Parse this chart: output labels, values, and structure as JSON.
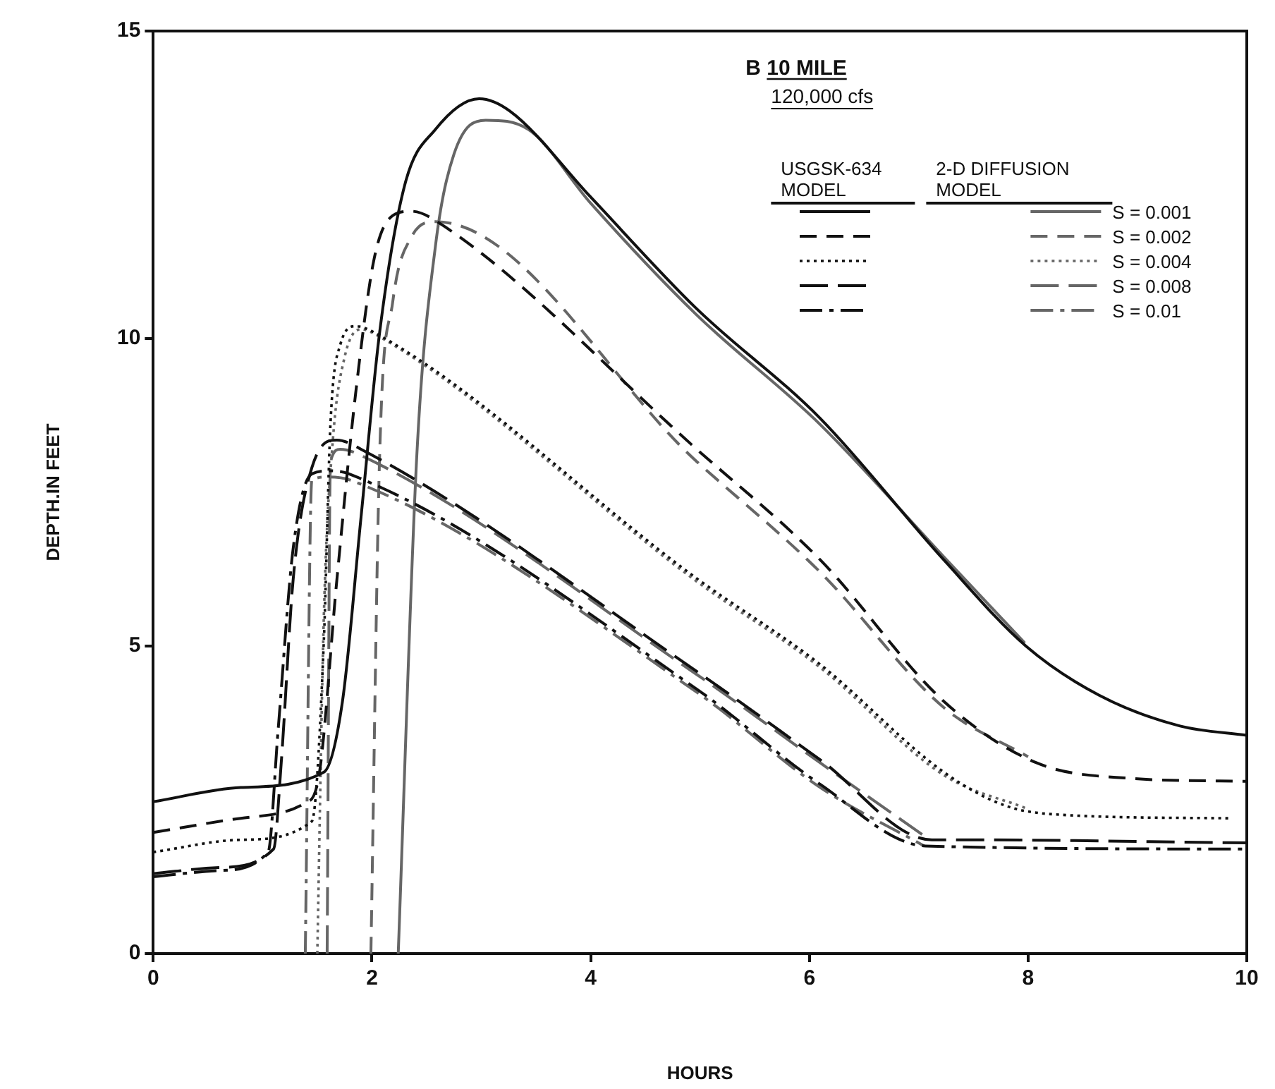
{
  "chart_data": {
    "type": "line",
    "title": "B 10 MILE",
    "subtitle": "120,000 cfs",
    "xlabel": "HOURS",
    "ylabel": "DEPTH.IN FEET",
    "annotations": [
      "USGSK-634 MODEL",
      "2-D DIFFUSION MODEL"
    ],
    "xlim": [
      0,
      10
    ],
    "ylim": [
      0,
      15
    ],
    "xticks": [
      0,
      2,
      4,
      6,
      8,
      10
    ],
    "yticks": [
      0,
      5,
      10,
      15
    ],
    "legend": "top right",
    "series": [
      {
        "color": "#111111",
        "line_style": "solid",
        "x": [
          0,
          0.8,
          1.56,
          1.73,
          1.9,
          2.07,
          2.3,
          2.58,
          2.98,
          3.26,
          4,
          4.96,
          6.1,
          7.23,
          7.98,
          8.65,
          9.39,
          10
        ],
        "values": [
          2.47,
          2.7,
          2.95,
          4.1,
          7.1,
          10.1,
          12.5,
          13.4,
          13.9,
          13.7,
          12.3,
          10.5,
          8.7,
          6.4,
          5.0,
          4.2,
          3.7,
          3.55
        ]
      },
      {
        "color": "#111111",
        "line_style": "dashed",
        "x": [
          0,
          0.8,
          1.39,
          1.51,
          1.68,
          1.85,
          2.02,
          2.19,
          2.36,
          2.64,
          4.97,
          6.1,
          7.23,
          8.08,
          8.93,
          10
        ],
        "values": [
          1.97,
          2.2,
          2.45,
          2.84,
          6.1,
          9.1,
          11.3,
          12.0,
          12.07,
          11.85,
          8.2,
          6.4,
          4.1,
          3.1,
          2.85,
          2.8
        ]
      },
      {
        "color": "#111111",
        "line_style": "dotted",
        "x": [
          0,
          0.8,
          1.45,
          1.56,
          1.62,
          1.71,
          1.85,
          2.02,
          4.97,
          6.1,
          7.23,
          7.8,
          8.37,
          9.84
        ],
        "values": [
          1.65,
          1.85,
          2.15,
          5.1,
          8.6,
          9.9,
          10.2,
          10.1,
          6.1,
          4.7,
          2.95,
          2.4,
          2.25,
          2.2
        ]
      },
      {
        "color": "#111111",
        "line_style": "longdash",
        "x": [
          0,
          0.6,
          1.1,
          1.17,
          1.28,
          1.45,
          1.68,
          1.9,
          4.96,
          6.1,
          7.12,
          7.35,
          10
        ],
        "values": [
          1.3,
          1.4,
          1.7,
          3.1,
          6.1,
          7.9,
          8.35,
          8.2,
          4.6,
          3.15,
          1.85,
          1.85,
          1.8
        ]
      },
      {
        "color": "#111111",
        "line_style": "dashdot",
        "x": [
          0,
          0.6,
          1.05,
          1.14,
          1.28,
          1.45,
          1.62,
          1.79,
          4.97,
          6.1,
          7.06,
          10
        ],
        "values": [
          1.25,
          1.35,
          1.65,
          3.6,
          6.6,
          7.8,
          7.85,
          7.8,
          4.3,
          2.75,
          1.75,
          1.7
        ]
      },
      {
        "name": "S = 0.001",
        "color": "#666666",
        "line_style": "solid",
        "x": [
          2.24,
          2.41,
          2.58,
          2.75,
          3.04,
          3.43,
          4,
          4.96,
          6.1,
          7.23,
          7.97
        ],
        "values": [
          0,
          8.1,
          11.5,
          13.0,
          13.55,
          13.4,
          12.2,
          10.4,
          8.6,
          6.45,
          5.05
        ]
      },
      {
        "name": "S = 0.002",
        "color": "#666666",
        "line_style": "dashed",
        "x": [
          1.99,
          2.07,
          2.19,
          2.36,
          2.58,
          4.97,
          6.1,
          7.23,
          8.0
        ],
        "values": [
          0,
          8.1,
          10.6,
          11.65,
          11.9,
          8.0,
          6.2,
          4.0,
          3.2
        ]
      },
      {
        "name": "S = 0.004",
        "color": "#666666",
        "line_style": "dotted",
        "x": [
          1.5,
          1.56,
          1.64,
          1.75,
          1.9,
          2.05,
          4.97,
          6.1,
          7.23,
          8.0
        ],
        "values": [
          0,
          5.5,
          8.3,
          9.7,
          10.15,
          10.05,
          6.05,
          4.65,
          2.9,
          2.35
        ]
      },
      {
        "name": "S = 0.008",
        "color": "#666666",
        "line_style": "longdash",
        "x": [
          1.59,
          1.62,
          1.71,
          1.9,
          4.96,
          6.1,
          7.1
        ],
        "values": [
          0,
          8.0,
          8.2,
          8.1,
          4.55,
          3.1,
          1.85
        ]
      },
      {
        "name": "S = 0.01",
        "color": "#666666",
        "line_style": "dashdot",
        "x": [
          1.39,
          1.45,
          1.6,
          1.8,
          4.97,
          6.1,
          7.05
        ],
        "values": [
          0,
          7.7,
          7.75,
          7.7,
          4.25,
          2.7,
          1.75
        ]
      }
    ]
  }
}
